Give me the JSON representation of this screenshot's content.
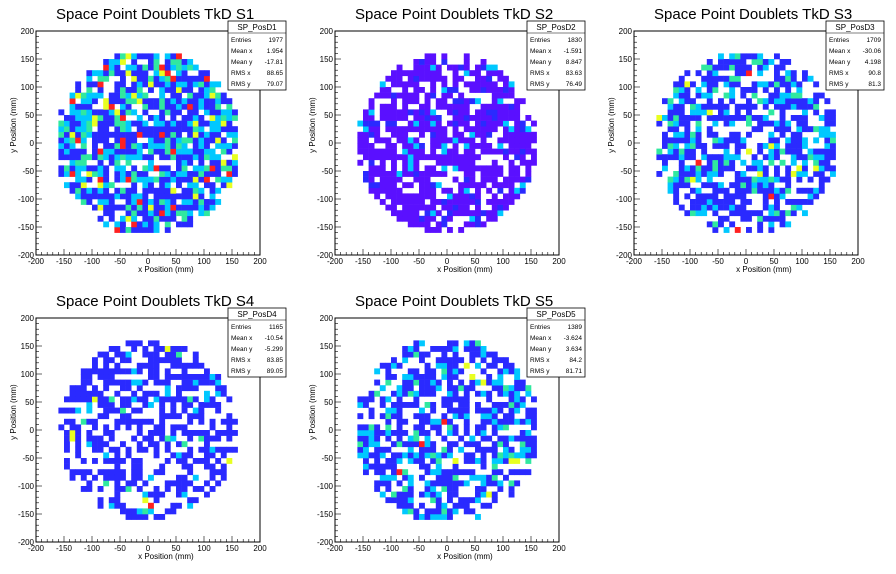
{
  "chart_data": [
    {
      "type": "heatmap",
      "title": "Space Point Doublets TkD S1",
      "xlabel": "x Position (mm)",
      "ylabel": "y Position (mm)",
      "xlim": [
        -200,
        200
      ],
      "ylim": [
        -200,
        200
      ],
      "x_ticks": [
        "-200",
        "-150",
        "-100",
        "-50",
        "0",
        "50",
        "100",
        "150",
        "200"
      ],
      "y_ticks": [
        "-200",
        "-150",
        "-100",
        "-50",
        "0",
        "50",
        "100",
        "150",
        "200"
      ],
      "disc_radius": 165,
      "bin_width": 10,
      "fill_fraction": 0.8,
      "color_mix": {
        "blue": 0.5,
        "cyan": 0.25,
        "green": 0.15,
        "yellow": 0.06,
        "red": 0.04
      },
      "stats": {
        "name": "SP_PosD1",
        "rows": [
          {
            "label": "Entries",
            "value": "1977"
          },
          {
            "label": "Mean x",
            "value": "1.954"
          },
          {
            "label": "Mean y",
            "value": "-17.81"
          },
          {
            "label": "RMS x",
            "value": "88.65"
          },
          {
            "label": "RMS y",
            "value": "79.07"
          }
        ]
      }
    },
    {
      "type": "heatmap",
      "title": "Space Point Doublets TkD S2",
      "xlabel": "x Position (mm)",
      "ylabel": "y Position (mm)",
      "xlim": [
        -200,
        200
      ],
      "ylim": [
        -200,
        200
      ],
      "x_ticks": [
        "-200",
        "-150",
        "-100",
        "-50",
        "0",
        "50",
        "100",
        "150",
        "200"
      ],
      "y_ticks": [
        "-200",
        "-150",
        "-100",
        "-50",
        "0",
        "50",
        "100",
        "150",
        "200"
      ],
      "disc_radius": 160,
      "bin_width": 10,
      "fill_fraction": 0.72,
      "color_mix": {
        "violet": 0.82,
        "blue": 0.12,
        "cyan": 0.06
      },
      "stats": {
        "name": "SP_PosD2",
        "rows": [
          {
            "label": "Entries",
            "value": "1830"
          },
          {
            "label": "Mean x",
            "value": "-1.591"
          },
          {
            "label": "Mean y",
            "value": "8.847"
          },
          {
            "label": "RMS x",
            "value": "83.63"
          },
          {
            "label": "RMS y",
            "value": "76.49"
          }
        ]
      }
    },
    {
      "type": "heatmap",
      "title": "Space Point Doublets TkD S3",
      "xlabel": "x Position (mm)",
      "ylabel": "y Position (mm)",
      "xlim": [
        -200,
        200
      ],
      "ylim": [
        -200,
        200
      ],
      "x_ticks": [
        "-200",
        "-150",
        "-100",
        "-50",
        "0",
        "50",
        "100",
        "150",
        "200"
      ],
      "y_ticks": [
        "-200",
        "-150",
        "-100",
        "-50",
        "0",
        "50",
        "100",
        "150",
        "200"
      ],
      "disc_radius": 165,
      "bin_width": 10,
      "fill_fraction": 0.68,
      "color_mix": {
        "blue": 0.65,
        "cyan": 0.22,
        "green": 0.09,
        "yellow": 0.03,
        "red": 0.01
      },
      "stats": {
        "name": "SP_PosD3",
        "rows": [
          {
            "label": "Entries",
            "value": "1709"
          },
          {
            "label": "Mean x",
            "value": "-30.06"
          },
          {
            "label": "Mean y",
            "value": "4.198"
          },
          {
            "label": "RMS x",
            "value": "90.8"
          },
          {
            "label": "RMS y",
            "value": "81.3"
          }
        ]
      }
    },
    {
      "type": "heatmap",
      "title": "Space Point Doublets TkD S4",
      "xlabel": "x Position (mm)",
      "ylabel": "y Position (mm)",
      "xlim": [
        -200,
        200
      ],
      "ylim": [
        -200,
        200
      ],
      "x_ticks": [
        "-200",
        "-150",
        "-100",
        "-50",
        "0",
        "50",
        "100",
        "150",
        "200"
      ],
      "y_ticks": [
        "-200",
        "-150",
        "-100",
        "-50",
        "0",
        "50",
        "100",
        "150",
        "200"
      ],
      "disc_radius": 160,
      "bin_width": 10,
      "fill_fraction": 0.55,
      "color_mix": {
        "blue": 0.86,
        "cyan": 0.09,
        "green": 0.03,
        "yellow": 0.01,
        "red": 0.01
      },
      "stats": {
        "name": "SP_PosD4",
        "rows": [
          {
            "label": "Entries",
            "value": "1165"
          },
          {
            "label": "Mean x",
            "value": "-10.54"
          },
          {
            "label": "Mean y",
            "value": "-5.299"
          },
          {
            "label": "RMS x",
            "value": "83.85"
          },
          {
            "label": "RMS y",
            "value": "89.05"
          }
        ]
      }
    },
    {
      "type": "heatmap",
      "title": "Space Point Doublets TkD S5",
      "xlabel": "x Position (mm)",
      "ylabel": "y Position (mm)",
      "xlim": [
        -200,
        200
      ],
      "ylim": [
        -200,
        200
      ],
      "x_ticks": [
        "-200",
        "-150",
        "-100",
        "-50",
        "0",
        "50",
        "100",
        "150",
        "200"
      ],
      "y_ticks": [
        "-200",
        "-150",
        "-100",
        "-50",
        "0",
        "50",
        "100",
        "150",
        "200"
      ],
      "disc_radius": 165,
      "bin_width": 10,
      "fill_fraction": 0.62,
      "color_mix": {
        "blue": 0.68,
        "cyan": 0.22,
        "green": 0.07,
        "yellow": 0.02,
        "red": 0.01
      },
      "stats": {
        "name": "SP_PosD5",
        "rows": [
          {
            "label": "Entries",
            "value": "1389"
          },
          {
            "label": "Mean x",
            "value": "-3.624"
          },
          {
            "label": "Mean y",
            "value": "3.634"
          },
          {
            "label": "RMS x",
            "value": "84.2"
          },
          {
            "label": "RMS y",
            "value": "81.71"
          }
        ]
      }
    }
  ],
  "palette": {
    "violet": "#5a10ff",
    "blue": "#2a2aff",
    "cyan": "#00c8ff",
    "green": "#30e8a0",
    "yellow": "#e8ff20",
    "red": "#ff2020"
  }
}
